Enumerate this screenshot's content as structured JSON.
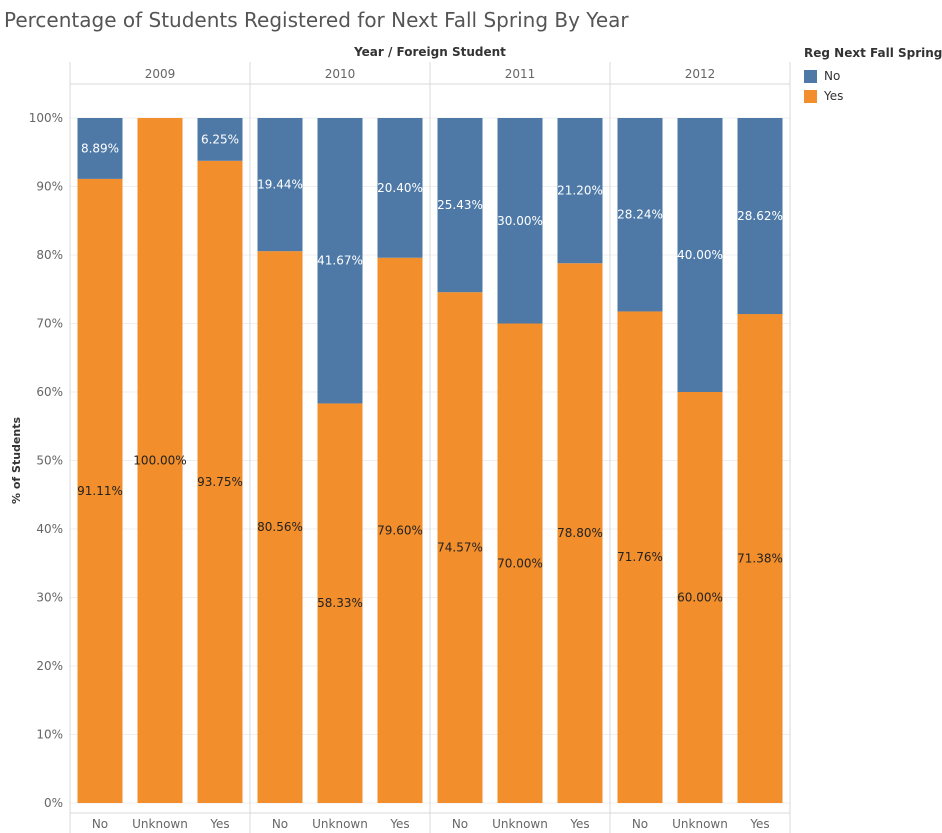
{
  "title": "Percentage of Students Registered for Next Fall Spring By Year",
  "header": "Year / Foreign Student",
  "legend": {
    "title": "Reg Next Fall Spring",
    "items": [
      {
        "label": "No",
        "color": "#4e79a7"
      },
      {
        "label": "Yes",
        "color": "#f28e2b"
      }
    ]
  },
  "chart_data": {
    "type": "bar",
    "stacked": "100%",
    "title": "Percentage of Students Registered for Next Fall Spring By Year",
    "header": "Year / Foreign Student",
    "ylabel": "% of Students",
    "ylim": [
      0,
      100
    ],
    "yticks": [
      "0%",
      "10%",
      "20%",
      "30%",
      "40%",
      "50%",
      "60%",
      "70%",
      "80%",
      "90%",
      "100%"
    ],
    "grid": true,
    "legend_position": "top-right",
    "groups": [
      "2009",
      "2010",
      "2011",
      "2012"
    ],
    "categories": [
      "No",
      "Unknown",
      "Yes"
    ],
    "series": [
      {
        "name": "No",
        "color": "#4e79a7",
        "values": [
          [
            8.89,
            0,
            6.25
          ],
          [
            19.44,
            41.67,
            20.4
          ],
          [
            25.43,
            30.0,
            21.2
          ],
          [
            28.24,
            40.0,
            28.62
          ]
        ],
        "labels": [
          [
            "8.89%",
            "",
            "6.25%"
          ],
          [
            "19.44%",
            "41.67%",
            "20.40%"
          ],
          [
            "25.43%",
            "30.00%",
            "21.20%"
          ],
          [
            "28.24%",
            "40.00%",
            "28.62%"
          ]
        ]
      },
      {
        "name": "Yes",
        "color": "#f28e2b",
        "values": [
          [
            91.11,
            100.0,
            93.75
          ],
          [
            80.56,
            58.33,
            79.6
          ],
          [
            74.57,
            70.0,
            78.8
          ],
          [
            71.76,
            60.0,
            71.38
          ]
        ],
        "labels": [
          [
            "91.11%",
            "100.00%",
            "93.75%"
          ],
          [
            "80.56%",
            "58.33%",
            "79.60%"
          ],
          [
            "74.57%",
            "70.00%",
            "78.80%"
          ],
          [
            "71.76%",
            "60.00%",
            "71.38%"
          ]
        ]
      }
    ]
  }
}
